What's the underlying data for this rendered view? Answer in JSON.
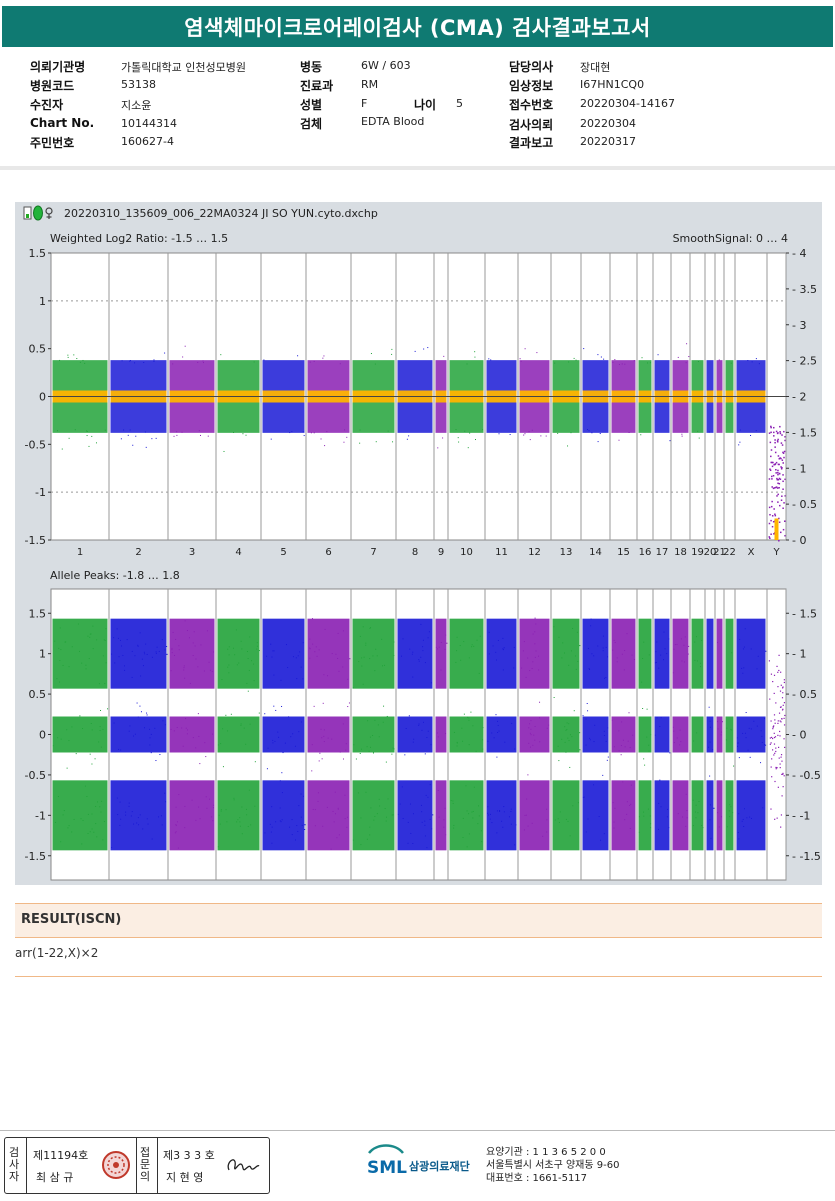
{
  "header": {
    "title": "염색체마이크로어레이검사 (CMA) 검사결과보고서"
  },
  "info": {
    "c1": [
      {
        "label": "의뢰기관명",
        "value": "가톨릭대학교 인천성모병원"
      },
      {
        "label": "병원코드",
        "value": "53138"
      },
      {
        "label": "수진자",
        "value": "지소윤"
      },
      {
        "label": "Chart No.",
        "value": "10144314"
      },
      {
        "label": "주민번호",
        "value": "160627-4"
      }
    ],
    "c2": [
      {
        "label": "병동",
        "value": "6W / 603"
      },
      {
        "label": "진료과",
        "value": "RM"
      },
      {
        "label": "성별",
        "value": "F"
      },
      {
        "label": "검체",
        "value": "EDTA Blood"
      }
    ],
    "age": {
      "label": "나이",
      "value": "5"
    },
    "c3": [
      {
        "label": "담당의사",
        "value": "장대현"
      },
      {
        "label": "임상정보",
        "value": "I67HN1CQ0"
      },
      {
        "label": "접수번호",
        "value": "20220304-14167"
      },
      {
        "label": "검사의뢰",
        "value": "20220304"
      },
      {
        "label": "결과보고",
        "value": "20220317"
      }
    ]
  },
  "plot": {
    "file_name": "20220310_135609_006_22MA0324 JI SO YUN.cyto.dxchp",
    "plot1_title": "Weighted Log2 Ratio: -1.5 … 1.5",
    "smooth_title": "SmoothSignal: 0 … 4",
    "plot2_title": "Allele Peaks: -1.8 … 1.8",
    "colors": {
      "green": "#22a33a",
      "blue": "#1a1ad6",
      "purple": "#8a1fb3",
      "smooth": "#ffb400"
    }
  },
  "chart_data": [
    {
      "type": "scatter",
      "title": "Weighted Log2 Ratio: -1.5 … 1.5",
      "ylim": [
        -1.5,
        1.5
      ],
      "y_ticks": [
        "1.5",
        "1",
        "0.5",
        "0",
        "-0.5",
        "-1",
        "-1.5"
      ],
      "y2_ticks": [
        "4",
        "3.5",
        "3",
        "2.5",
        "2",
        "1.5",
        "1",
        "0.5",
        "0"
      ],
      "y2lim": [
        0,
        4
      ],
      "categories": [
        "1",
        "2",
        "3",
        "4",
        "5",
        "6",
        "7",
        "8",
        "9",
        "10",
        "11",
        "12",
        "13",
        "14",
        "15",
        "16",
        "17",
        "18",
        "19",
        "20",
        "21",
        "22",
        "X",
        "Y"
      ],
      "series": [
        {
          "name": "SmoothSignal: 0 … 4",
          "values": [
            2,
            2,
            2,
            2,
            2,
            2,
            2,
            2,
            2,
            2,
            2,
            2,
            2,
            2,
            2,
            2,
            2,
            2,
            2,
            2,
            2,
            2,
            2,
            0
          ]
        }
      ]
    },
    {
      "type": "scatter",
      "title": "Allele Peaks: -1.8 … 1.8",
      "ylim": [
        -1.8,
        1.8
      ],
      "y_ticks": [
        "1.5",
        "1",
        "0.5",
        "0",
        "-0.5",
        "-1",
        "-1.5"
      ],
      "peaks": [
        1,
        0,
        -1
      ]
    }
  ],
  "result": {
    "heading": "RESULT(ISCN)",
    "value": "arr(1-22,X)×2"
  },
  "footer": {
    "v1": [
      "검",
      "사",
      "자"
    ],
    "v2": [
      "접",
      "문",
      "의"
    ],
    "signer1_no": "제11194호",
    "signer1_name": "최 삼 규",
    "signer2_no": "제3 3 3 호",
    "signer2_name": "지 현 영",
    "logo_text": "SML",
    "org_name": "삼광의료재단",
    "org_lines": [
      "요양기관 : 1 1 3 6 5 2 0 0",
      "서울특별시 서초구 양재동 9-60",
      "대표번호 : 1661-5117"
    ]
  }
}
